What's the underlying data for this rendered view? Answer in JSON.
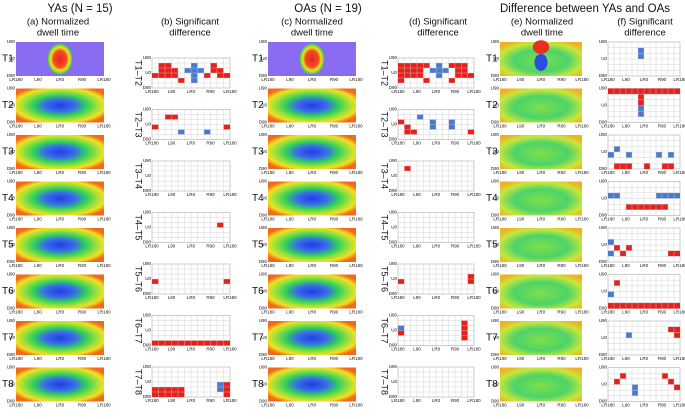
{
  "groups": [
    {
      "title": "YAs (N = 15)",
      "panels": [
        [
          "(a) Normalized",
          "dwell time"
        ],
        [
          "(b) Significant",
          "difference"
        ]
      ]
    },
    {
      "title": "OAs (N = 19)",
      "panels": [
        [
          "(c) Normalized",
          "dwell time"
        ],
        [
          "(d) Significant",
          "difference"
        ]
      ]
    },
    {
      "title": "Difference between YAs and OAs",
      "panels": [
        [
          "(e) Normalized",
          "dwell time"
        ],
        [
          "(f) Significant",
          "difference"
        ]
      ]
    }
  ],
  "rows": [
    "T1",
    "T2",
    "T3",
    "T4",
    "T5",
    "T6",
    "T7",
    "T8"
  ],
  "pairs": [
    "T1–T2",
    "T2–T3",
    "T3–T4",
    "T4–T5",
    "T5–T6",
    "T6–T7",
    "T7–T8"
  ],
  "axes": {
    "y": [
      "U90",
      "U0",
      "D90"
    ],
    "x": [
      "LR180",
      "L90",
      "LR0",
      "R90",
      "LR180"
    ]
  }
}
